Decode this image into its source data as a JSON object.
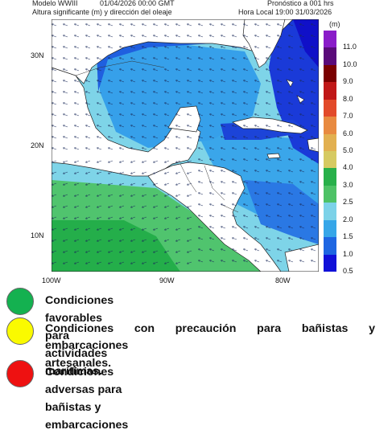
{
  "header": {
    "model": "Modelo WWIII",
    "date": "01/04/2026 00:00 GMT",
    "variable": "Altura significante (m) y dirección del oleaje",
    "forecast": "Pronóstico a 001 hrs",
    "local_time": "Hora Local 19:00 31/03/2026",
    "unit": "(m)"
  },
  "map": {
    "lat_labels": [
      "30N",
      "20N",
      "10N"
    ],
    "lon_labels": [
      "100W",
      "90W",
      "80W"
    ]
  },
  "scale": {
    "labels": [
      "11.0",
      "10.0",
      "9.0",
      "8.0",
      "7.0",
      "6.0",
      "5.0",
      "4.0",
      "3.0",
      "2.5",
      "2.0",
      "1.5",
      "1.0",
      "0.5"
    ],
    "colors": [
      "#8a1cc9",
      "#5a0a7a",
      "#7a0000",
      "#c01818",
      "#e24a2a",
      "#e88a40",
      "#e2b050",
      "#d6ca62",
      "#28b04a",
      "#4ec266",
      "#7cd2e8",
      "#36a6e8",
      "#1e66e2",
      "#1010d8"
    ]
  },
  "legend": {
    "green": {
      "text": "Condiciones favorables para actividades marítimas.",
      "color": "#14b150"
    },
    "yellow": {
      "line1": "Condiciones con precaución para bañistas y",
      "line2": "embarcaciones artesanales.",
      "color": "#fafa00"
    },
    "red": {
      "text": "Condiciones adversas para bañistas y embarcaciones",
      "color": "#ee1111"
    }
  }
}
